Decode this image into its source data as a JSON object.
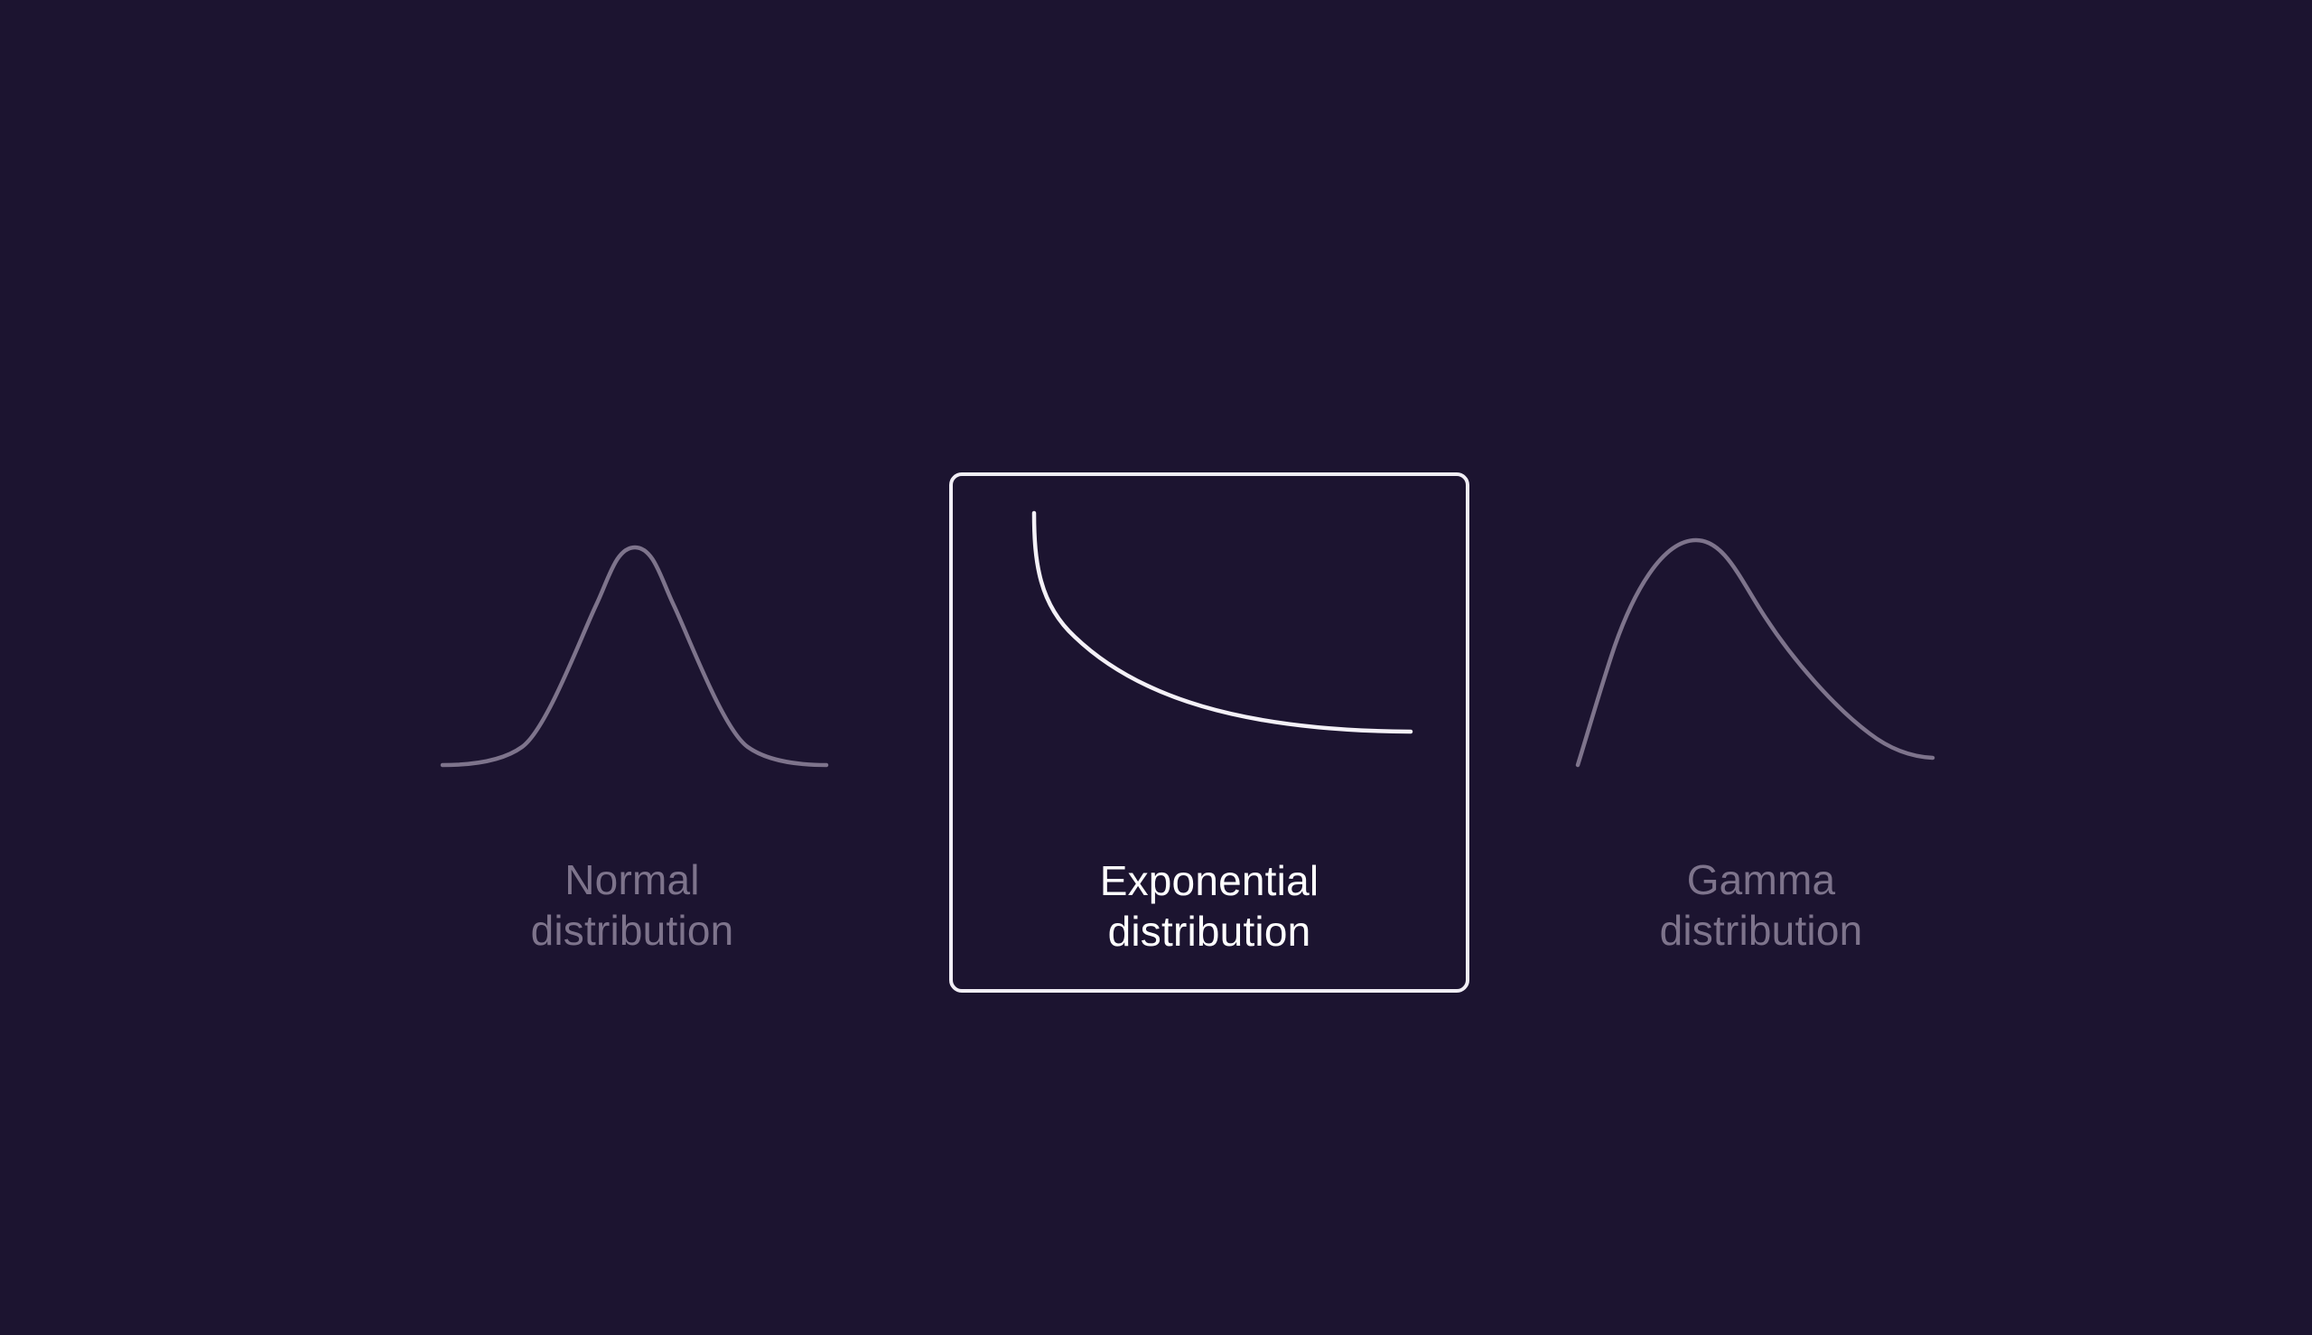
{
  "options": [
    {
      "id": "normal",
      "name_line1": "Normal",
      "name_line2": "distribution",
      "selected": false,
      "icon": "normal-distribution-curve-icon"
    },
    {
      "id": "exponential",
      "name_line1": "Exponential",
      "name_line2": "distribution",
      "selected": true,
      "icon": "exponential-distribution-curve-icon"
    },
    {
      "id": "gamma",
      "name_line1": "Gamma",
      "name_line2": "distribution",
      "selected": false,
      "icon": "gamma-distribution-curve-icon"
    }
  ],
  "colors": {
    "background": "#1c1430",
    "selected_text": "#ffffff",
    "selected_border": "#f1eef5",
    "unselected_text": "#7e748c"
  }
}
